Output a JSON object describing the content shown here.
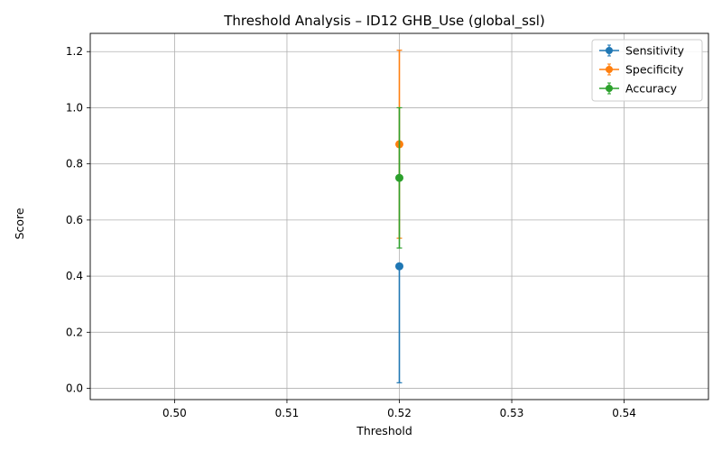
{
  "chart_data": {
    "type": "errorbar",
    "title": "Threshold Analysis – ID12 GHB_Use (global_ssl)",
    "xlabel": "Threshold",
    "ylabel": "Score",
    "xlim": [
      0.4925,
      0.5475
    ],
    "ylim": [
      -0.04,
      1.265
    ],
    "xticks": [
      0.5,
      0.51,
      0.52,
      0.53,
      0.54
    ],
    "xtick_labels": [
      "0.50",
      "0.51",
      "0.52",
      "0.53",
      "0.54"
    ],
    "yticks": [
      0.0,
      0.2,
      0.4,
      0.6,
      0.8,
      1.0,
      1.2
    ],
    "ytick_labels": [
      "0.0",
      "0.2",
      "0.4",
      "0.6",
      "0.8",
      "1.0",
      "1.2"
    ],
    "grid": true,
    "legend_position": "top-right",
    "series": [
      {
        "name": "Sensitivity",
        "color": "#1f77b4",
        "x": [
          0.52
        ],
        "y": [
          0.435
        ],
        "yerr_low": [
          0.02
        ],
        "yerr_high": [
          0.435
        ]
      },
      {
        "name": "Specificity",
        "color": "#ff7f0e",
        "x": [
          0.52
        ],
        "y": [
          0.87
        ],
        "yerr_low": [
          0.535
        ],
        "yerr_high": [
          1.205
        ]
      },
      {
        "name": "Accuracy",
        "color": "#2ca02c",
        "x": [
          0.52
        ],
        "y": [
          0.75
        ],
        "yerr_low": [
          0.5
        ],
        "yerr_high": [
          1.0
        ]
      }
    ]
  }
}
